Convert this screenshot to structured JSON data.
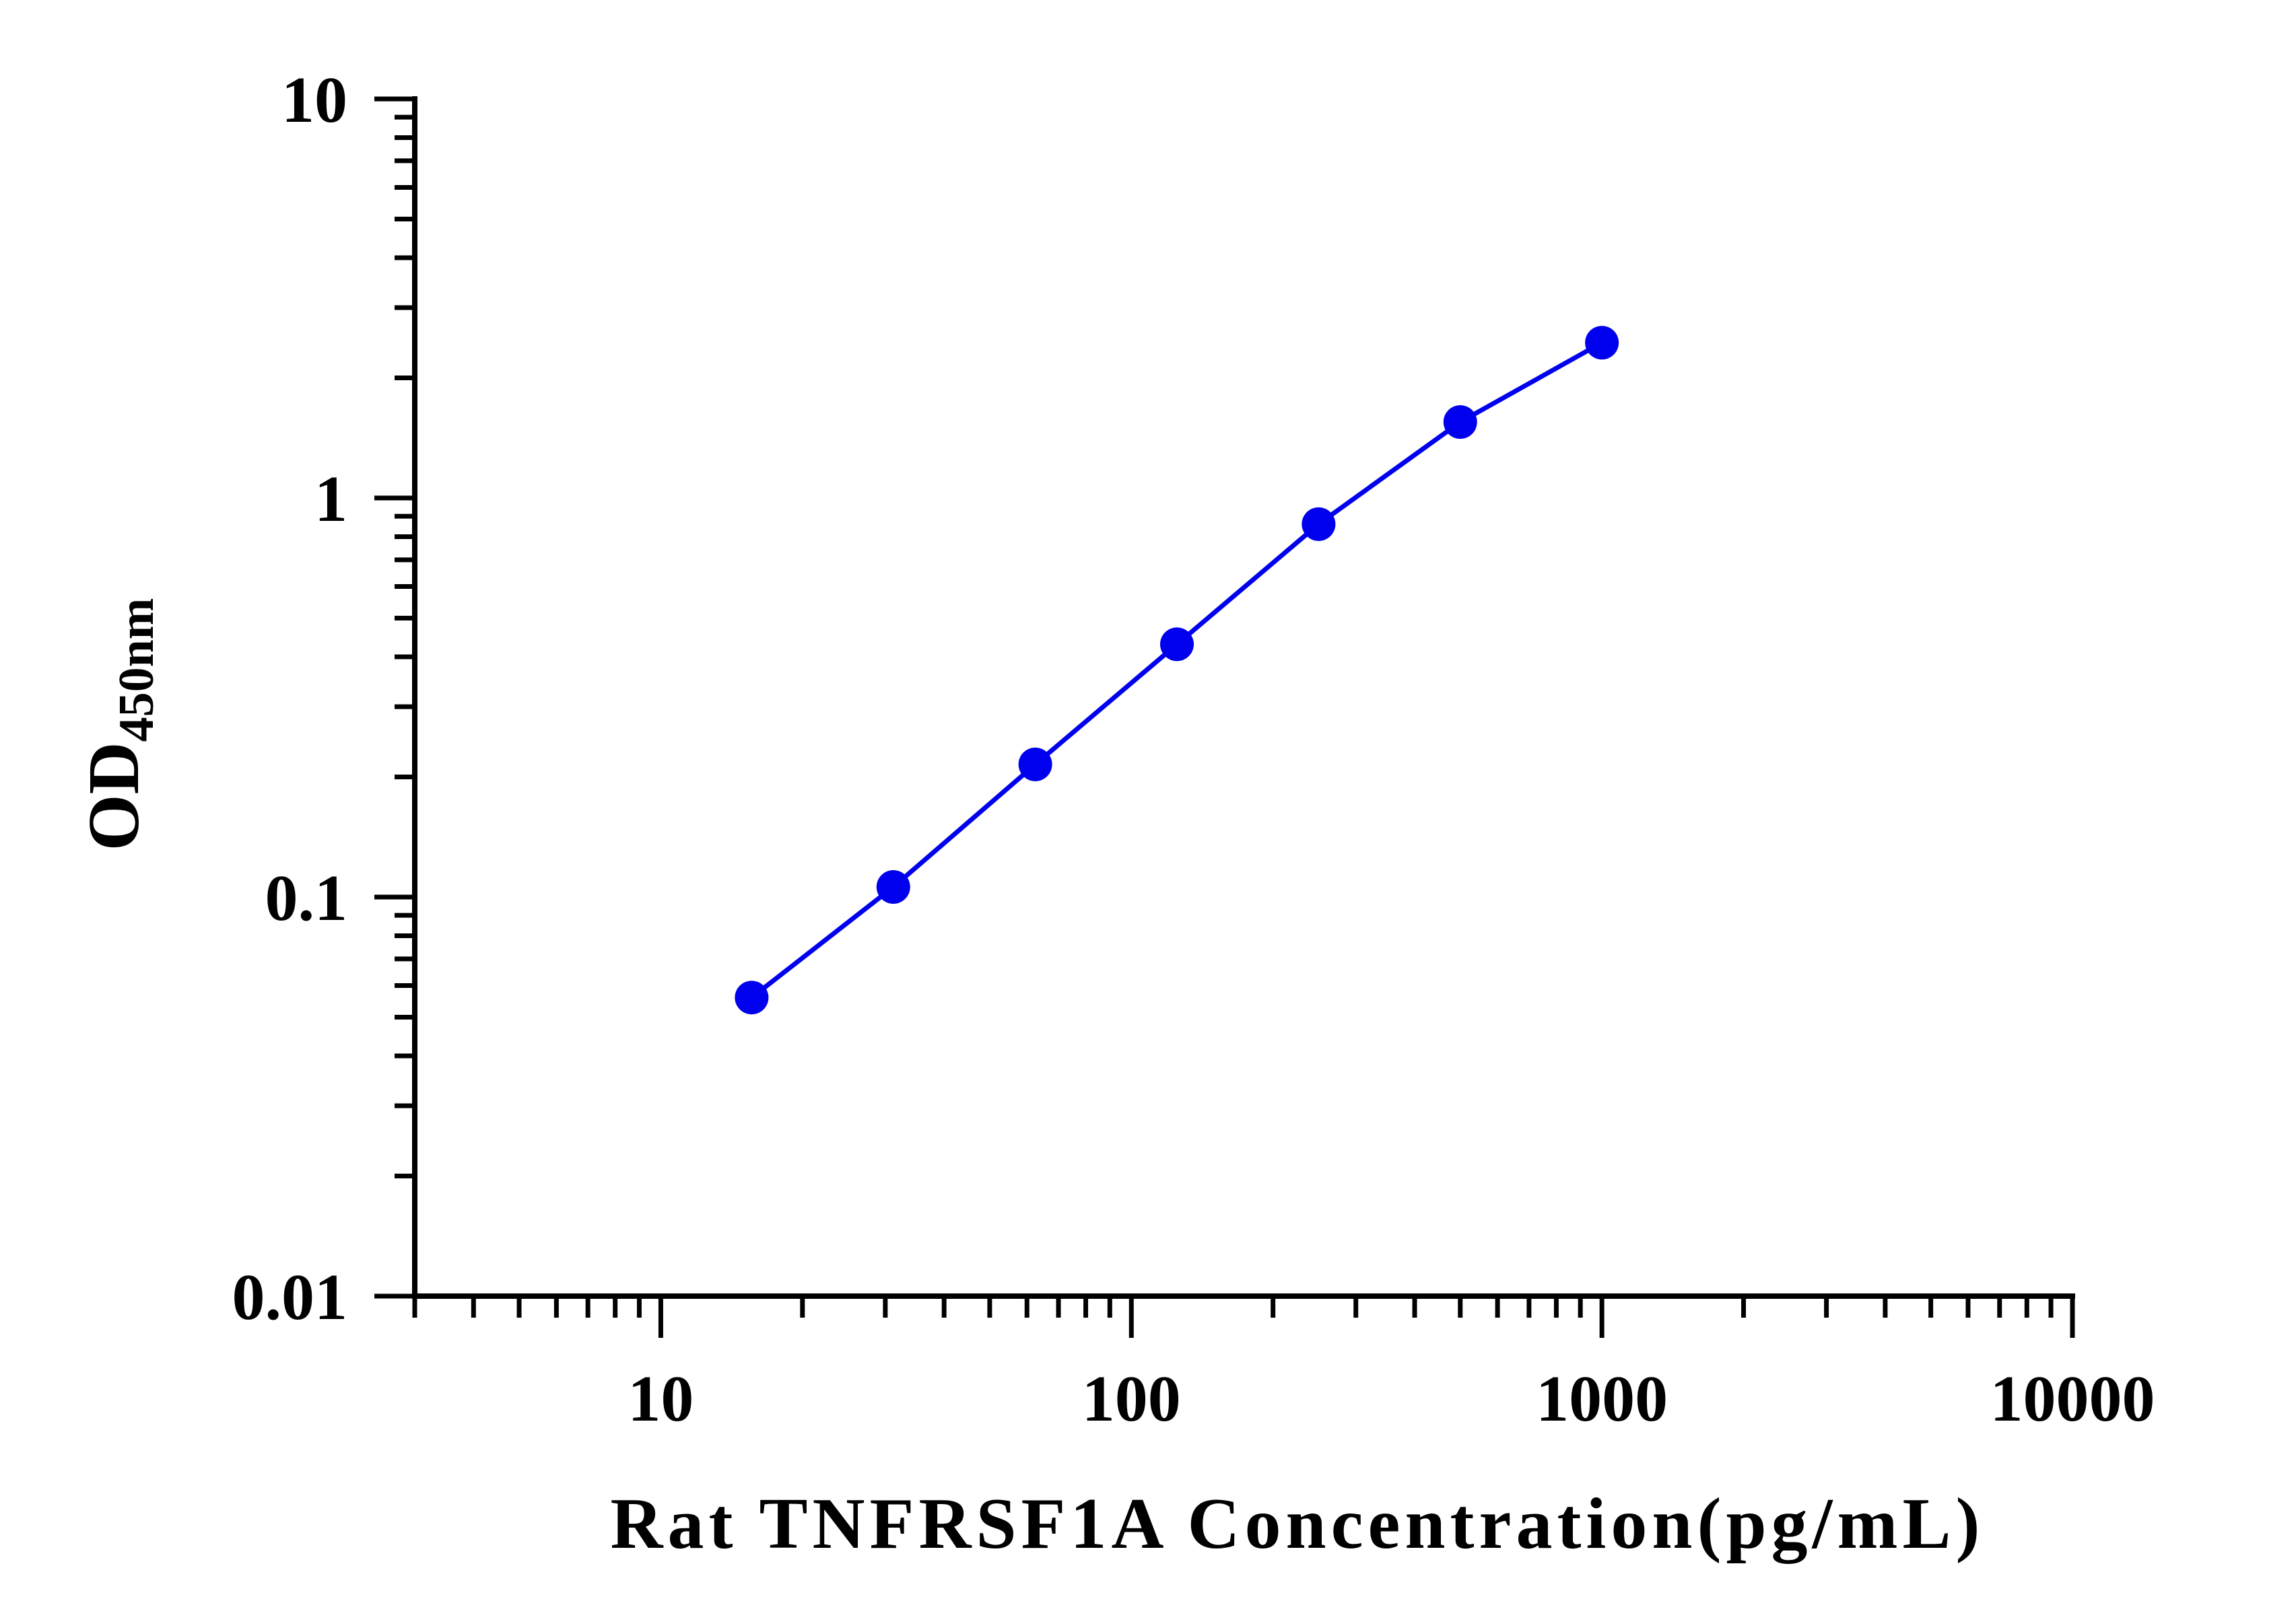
{
  "chart_data": {
    "type": "line",
    "xlabel": "Rat TNFRSF1A Concentration(pg/mL)",
    "ylabel": {
      "main": "OD",
      "subscript": "450nm"
    },
    "x_scale": "log",
    "y_scale": "log",
    "xlim": [
      3,
      10000
    ],
    "ylim": [
      0.01,
      10
    ],
    "x_ticks": [
      {
        "value": 10,
        "label": "10"
      },
      {
        "value": 100,
        "label": "100"
      },
      {
        "value": 1000,
        "label": "1000"
      },
      {
        "value": 10000,
        "label": "10000"
      }
    ],
    "y_ticks": [
      {
        "value": 0.01,
        "label": "0.01"
      },
      {
        "value": 0.1,
        "label": "0.1"
      },
      {
        "value": 1,
        "label": "1"
      },
      {
        "value": 10,
        "label": "10"
      }
    ],
    "grid": false,
    "series": [
      {
        "color": "#0000ee",
        "x": [
          15.6,
          31.2,
          62.5,
          125,
          250,
          500,
          1000
        ],
        "y": [
          0.056,
          0.106,
          0.215,
          0.43,
          0.86,
          1.55,
          2.45
        ]
      }
    ]
  }
}
